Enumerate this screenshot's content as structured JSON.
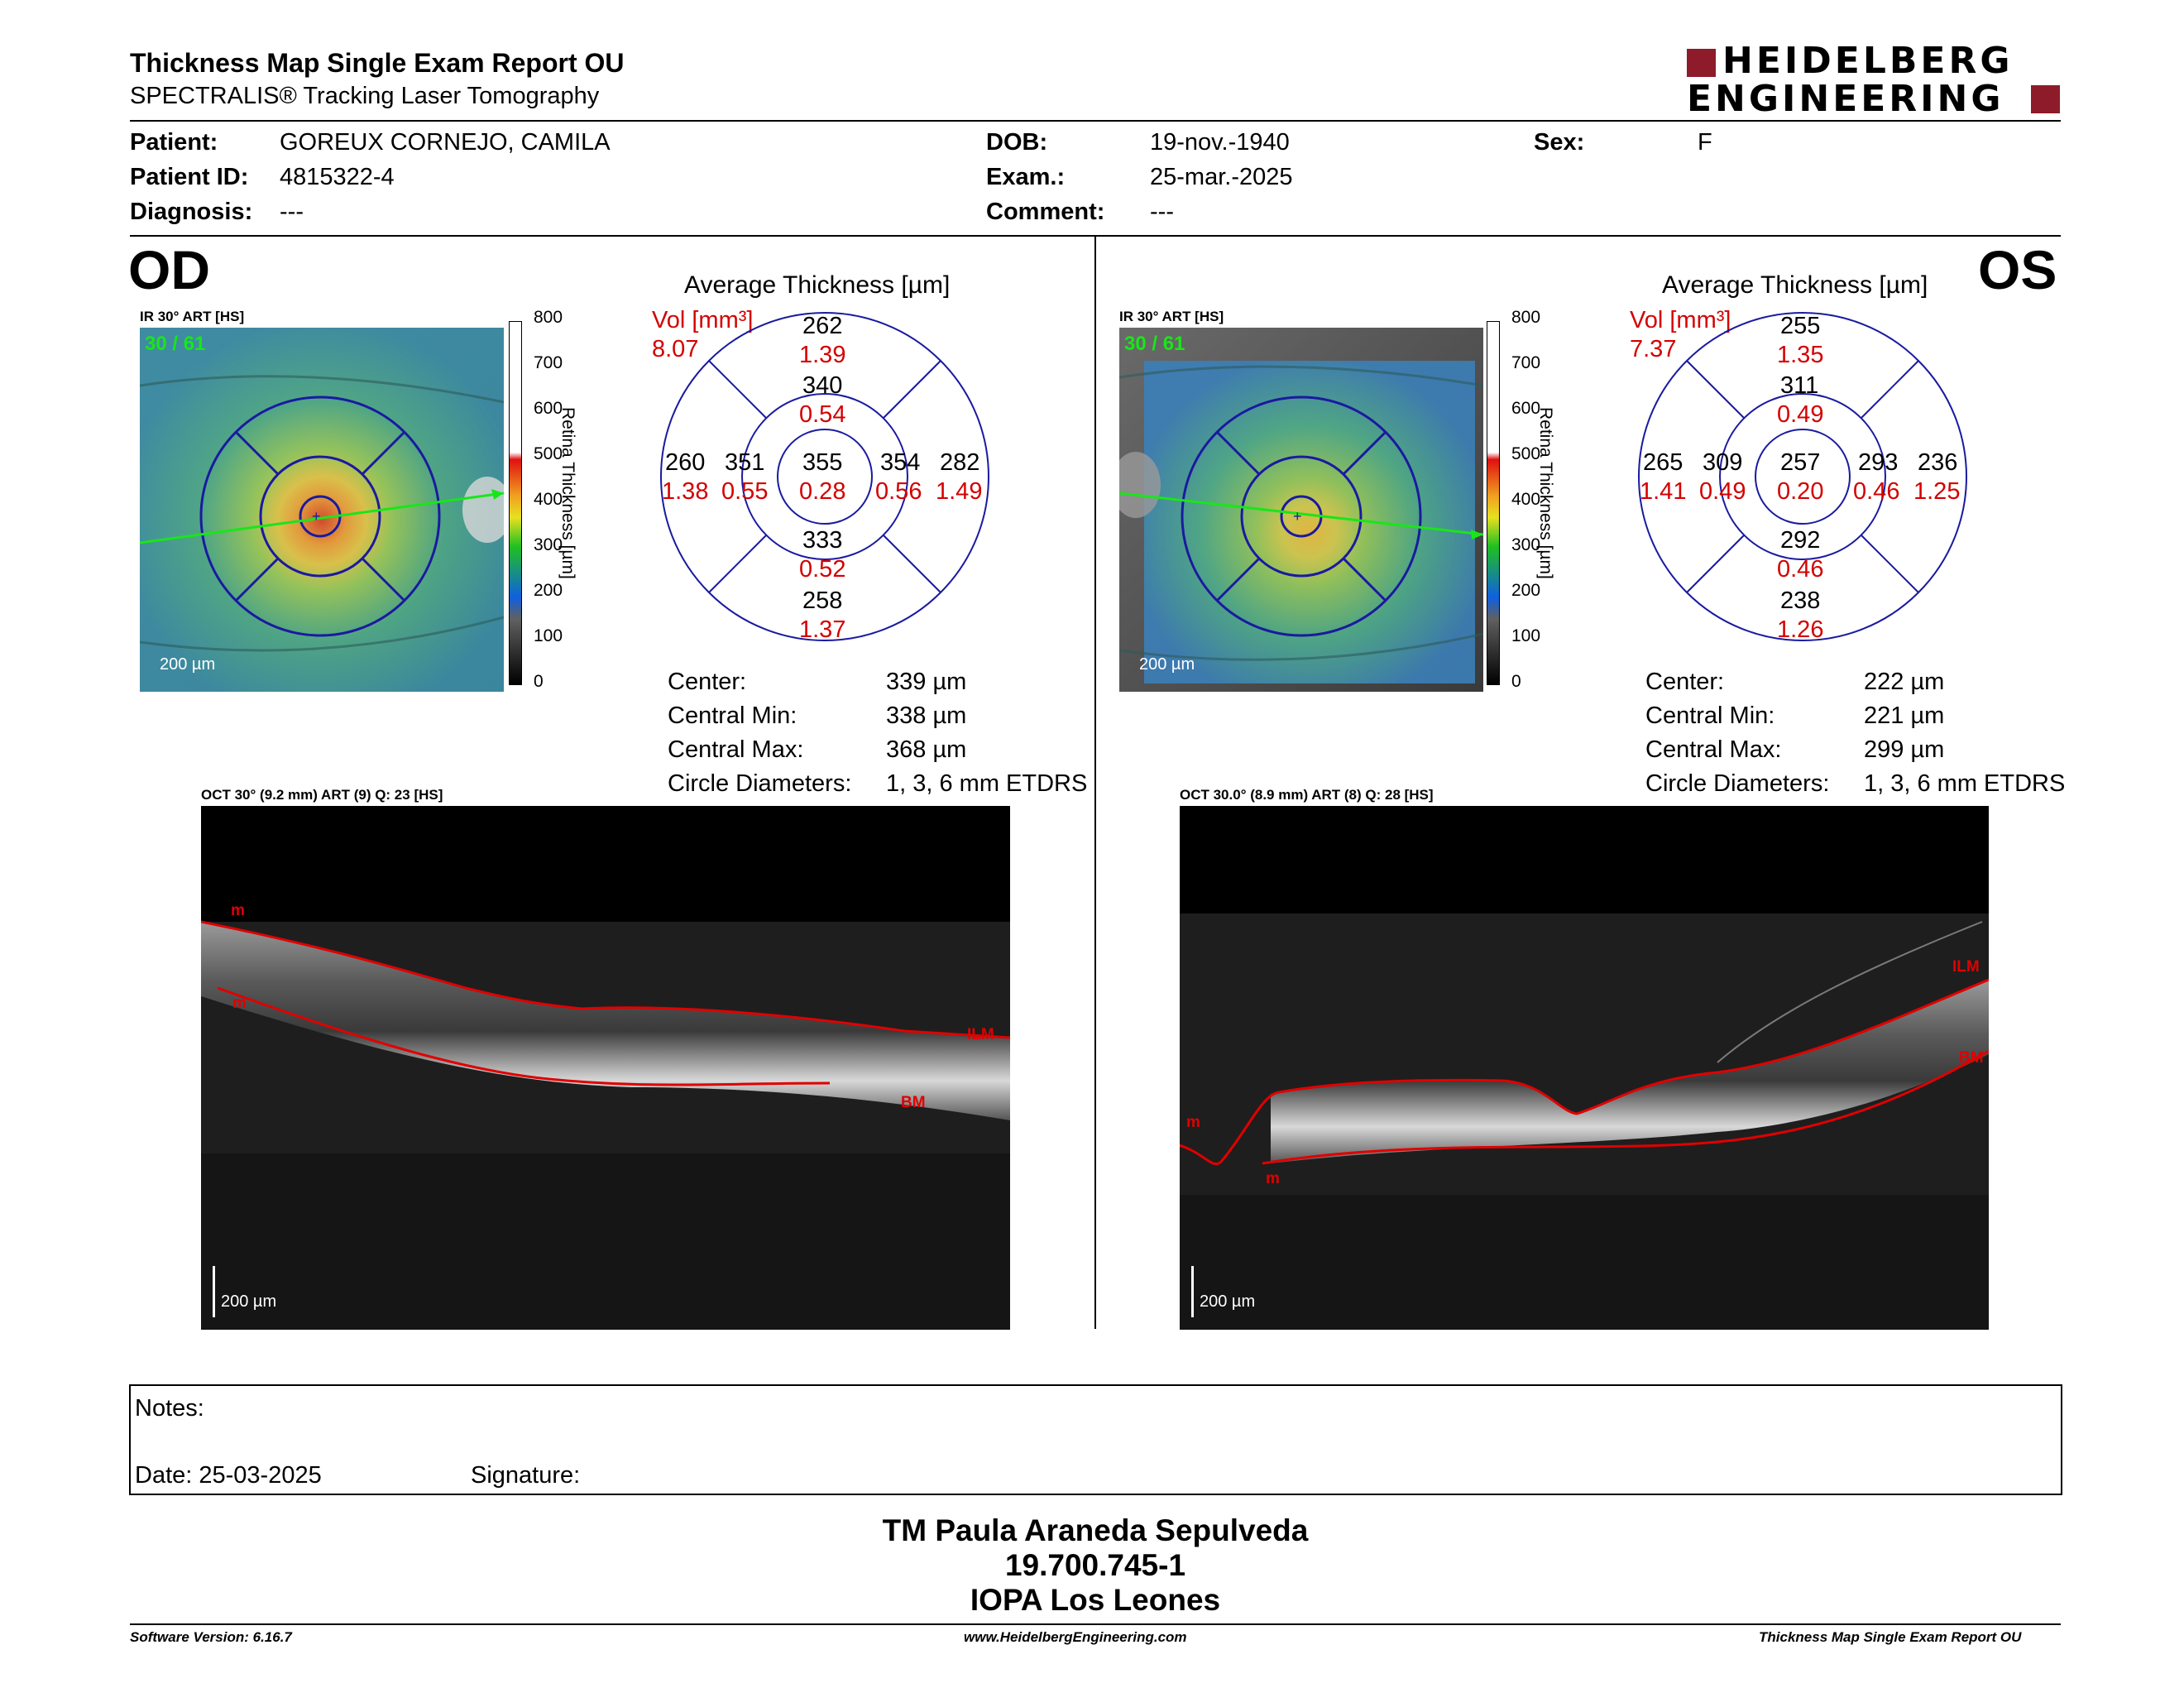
{
  "header": {
    "title": "Thickness Map Single Exam Report OU",
    "subtitle": "SPECTRALIS® Tracking Laser Tomography",
    "logo_line1": "HEIDELBERG",
    "logo_line2": "ENGINEERING",
    "brand_color": "#8e1b2a"
  },
  "patient": {
    "patient_label": "Patient:",
    "patient_value": "GOREUX CORNEJO, CAMILA",
    "id_label": "Patient ID:",
    "id_value": "4815322-4",
    "diag_label": "Diagnosis:",
    "diag_value": "---",
    "dob_label": "DOB:",
    "dob_value": "19-nov.-1940",
    "exam_label": "Exam.:",
    "exam_value": "25-mar.-2025",
    "comment_label": "Comment:",
    "comment_value": "---",
    "sex_label": "Sex:",
    "sex_value": "F"
  },
  "od": {
    "eye_label": "OD",
    "fundus_caption": "IR 30° ART [HS]",
    "frame_counter": "30 / 61",
    "scale_bar": "200 µm",
    "avg_title": "Average Thickness [µm]",
    "vol_label": "Vol [mm³]",
    "vol_total": "8.07",
    "sectors": {
      "outer_superior": {
        "t": "262",
        "v": "1.39"
      },
      "inner_superior": {
        "t": "340",
        "v": "0.54"
      },
      "outer_temporal": {
        "t": "260",
        "v": "1.38"
      },
      "inner_temporal": {
        "t": "351",
        "v": "0.55"
      },
      "center": {
        "t": "355",
        "v": "0.28"
      },
      "inner_nasal": {
        "t": "354",
        "v": "0.56"
      },
      "outer_nasal": {
        "t": "282",
        "v": "1.49"
      },
      "inner_inferior": {
        "t": "333",
        "v": "0.52"
      },
      "outer_inferior": {
        "t": "258",
        "v": "1.37"
      }
    },
    "stats": {
      "center_label": "Center:",
      "center_value": "339 µm",
      "min_label": "Central Min:",
      "min_value": "338 µm",
      "max_label": "Central Max:",
      "max_value": "368 µm",
      "diam_label": "Circle Diameters:",
      "diam_value": "1, 3, 6 mm ETDRS"
    },
    "oct_caption": "OCT 30° (9.2 mm) ART (9) Q: 23 [HS]",
    "oct_scale": "200 µm",
    "layer_labels": {
      "ilm": "ILM",
      "bm": "BM",
      "m1": "m",
      "m2": "m"
    }
  },
  "os": {
    "eye_label": "OS",
    "fundus_caption": "IR 30° ART [HS]",
    "frame_counter": "30 / 61",
    "scale_bar": "200 µm",
    "avg_title": "Average Thickness [µm]",
    "vol_label": "Vol [mm³]",
    "vol_total": "7.37",
    "sectors": {
      "outer_superior": {
        "t": "255",
        "v": "1.35"
      },
      "inner_superior": {
        "t": "311",
        "v": "0.49"
      },
      "outer_temporal": {
        "t": "265",
        "v": "1.41"
      },
      "inner_temporal": {
        "t": "309",
        "v": "0.49"
      },
      "center": {
        "t": "257",
        "v": "0.20"
      },
      "inner_nasal": {
        "t": "293",
        "v": "0.46"
      },
      "outer_nasal": {
        "t": "236",
        "v": "1.25"
      },
      "inner_inferior": {
        "t": "292",
        "v": "0.46"
      },
      "outer_inferior": {
        "t": "238",
        "v": "1.26"
      }
    },
    "stats": {
      "center_label": "Center:",
      "center_value": "222 µm",
      "min_label": "Central Min:",
      "min_value": "221 µm",
      "max_label": "Central Max:",
      "max_value": "299 µm",
      "diam_label": "Circle Diameters:",
      "diam_value": "1, 3, 6 mm ETDRS"
    },
    "oct_caption": "OCT 30.0° (8.9 mm) ART (8) Q: 28 [HS]",
    "oct_scale": "200 µm",
    "layer_labels": {
      "ilm": "ILM",
      "bm": "BM",
      "m1": "m",
      "m2": "m"
    }
  },
  "colorbar": {
    "ticks": [
      "800",
      "700",
      "600",
      "500",
      "400",
      "300",
      "200",
      "100",
      "0"
    ],
    "label_word1": "Retina",
    "label_word2": "Thickness [µm]"
  },
  "notes": {
    "notes_label": "Notes:",
    "date_label": "Date: 25-03-2025",
    "signature_label": "Signature:"
  },
  "signer": {
    "name": "TM Paula Araneda Sepulveda",
    "rut": "19.700.745-1",
    "org": "IOPA Los Leones"
  },
  "footer": {
    "software": "Software Version: 6.16.7",
    "website": "www.HeidelbergEngineering.com",
    "report": "Thickness Map Single Exam Report OU"
  }
}
